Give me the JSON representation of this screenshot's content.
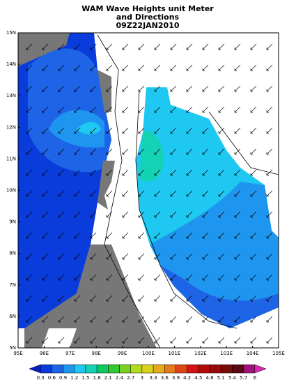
{
  "header": {
    "title_lines": [
      "WAM Wave Heights unit Meter",
      "and Directions",
      "09Z22JAN2010"
    ]
  },
  "map": {
    "lat_labels": [
      "15N",
      "14N",
      "13N",
      "12N",
      "11N",
      "10N",
      "9N",
      "8N",
      "7N",
      "6N",
      "5N"
    ],
    "lon_labels": [
      "95E",
      "96E",
      "97E",
      "98E",
      "99E",
      "100E",
      "101E",
      "102E",
      "103E",
      "104E",
      "105E"
    ]
  },
  "colorbar": {
    "labels": [
      "0.3",
      "0.6",
      "0.9",
      "1.2",
      "1.5",
      "1.8",
      "2.1",
      "2.4",
      "2.7",
      "3",
      "3.3",
      "3.6",
      "3.9",
      "4.2",
      "4.5",
      "4.8",
      "5.1",
      "5.4",
      "5.7",
      "6"
    ],
    "colors": [
      "#0a1ec8",
      "#0a3cdc",
      "#1e64e6",
      "#1e96f0",
      "#1ec8f0",
      "#14d2b4",
      "#10c864",
      "#32c832",
      "#78d21e",
      "#b4dc1e",
      "#dcd21e",
      "#e6aa1e",
      "#e6781e",
      "#e04614",
      "#d21414",
      "#b40a0a",
      "#960a0a",
      "#780a0a",
      "#5a0a14",
      "#a0147a",
      "#dc28b4"
    ]
  }
}
